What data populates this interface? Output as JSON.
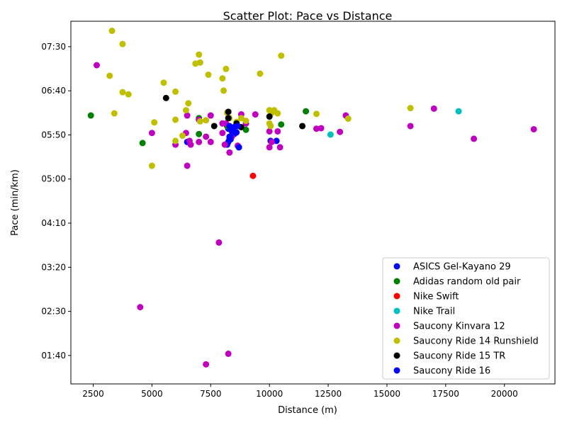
{
  "chart_data": {
    "type": "scatter",
    "title": "Scatter Plot: Pace vs Distance",
    "xlabel": "Distance (m)",
    "ylabel": "Pace (min/km)",
    "xlim": [
      1550,
      22150
    ],
    "ylim": [
      1.13,
      7.98
    ],
    "x_ticks": [
      2500,
      5000,
      7500,
      10000,
      12500,
      15000,
      17500,
      20000
    ],
    "x_tick_labels": [
      "2500",
      "5000",
      "7500",
      "10000",
      "12500",
      "15000",
      "17500",
      "20000"
    ],
    "y_ticks": [
      1.6667,
      2.5,
      3.3333,
      4.1667,
      5.0,
      5.8333,
      6.6667,
      7.5
    ],
    "y_tick_labels": [
      "01:40",
      "02:30",
      "03:20",
      "04:10",
      "05:00",
      "05:50",
      "06:40",
      "07:30"
    ],
    "grid": false,
    "legend_position": "lower right",
    "series": [
      {
        "name": "ASICS Gel-Kayano 29",
        "color": "#0000ff",
        "points": [
          [
            6500,
            5.7
          ],
          [
            8250,
            5.95
          ],
          [
            8300,
            5.8
          ],
          [
            8350,
            5.75
          ],
          [
            8400,
            5.9
          ],
          [
            8500,
            5.85
          ],
          [
            8250,
            5.7
          ],
          [
            10050,
            5.72
          ],
          [
            10300,
            5.72
          ],
          [
            8700,
            5.6
          ],
          [
            8200,
            5.65
          ],
          [
            8600,
            5.88
          ]
        ]
      },
      {
        "name": "Adidas random old pair",
        "color": "#008000",
        "points": [
          [
            2400,
            6.2
          ],
          [
            4600,
            5.68
          ],
          [
            7000,
            5.85
          ],
          [
            7000,
            6.15
          ],
          [
            9000,
            5.93
          ],
          [
            11550,
            6.28
          ],
          [
            10500,
            6.03
          ],
          [
            8200,
            6.0
          ]
        ]
      },
      {
        "name": "Nike Swift",
        "color": "#ff0000",
        "points": [
          [
            9300,
            5.06
          ]
        ]
      },
      {
        "name": "Nike Trail",
        "color": "#00bfbf",
        "points": [
          [
            12600,
            5.84
          ],
          [
            18050,
            6.28
          ]
        ]
      },
      {
        "name": "Saucony Kinvara 12",
        "color": "#bf00bf",
        "points": [
          [
            2650,
            7.15
          ],
          [
            4500,
            2.58
          ],
          [
            5000,
            5.87
          ],
          [
            6000,
            5.65
          ],
          [
            6450,
            5.87
          ],
          [
            6500,
            5.25
          ],
          [
            6500,
            6.2
          ],
          [
            6600,
            5.72
          ],
          [
            6650,
            5.65
          ],
          [
            7000,
            5.7
          ],
          [
            7000,
            6.12
          ],
          [
            7300,
            5.8
          ],
          [
            7500,
            5.7
          ],
          [
            7500,
            6.2
          ],
          [
            7850,
            3.8
          ],
          [
            7300,
            1.5
          ],
          [
            8000,
            6.05
          ],
          [
            8000,
            5.87
          ],
          [
            8100,
            5.65
          ],
          [
            8150,
            6.05
          ],
          [
            8250,
            1.7
          ],
          [
            8300,
            5.5
          ],
          [
            8400,
            5.8
          ],
          [
            8650,
            5.63
          ],
          [
            8800,
            6.22
          ],
          [
            9000,
            6.05
          ],
          [
            9400,
            6.22
          ],
          [
            10000,
            5.6
          ],
          [
            10000,
            5.9
          ],
          [
            10100,
            5.7
          ],
          [
            10350,
            5.9
          ],
          [
            10450,
            5.6
          ],
          [
            12000,
            5.95
          ],
          [
            12200,
            5.96
          ],
          [
            13000,
            5.89
          ],
          [
            13250,
            6.2
          ],
          [
            16000,
            6.0
          ],
          [
            17000,
            6.33
          ],
          [
            18700,
            5.76
          ],
          [
            21250,
            5.94
          ]
        ]
      },
      {
        "name": "Saucony Ride 14 Runshield",
        "color": "#bfbf00",
        "points": [
          [
            3300,
            7.8
          ],
          [
            3750,
            7.55
          ],
          [
            3200,
            6.95
          ],
          [
            3400,
            6.24
          ],
          [
            3750,
            6.64
          ],
          [
            4000,
            6.6
          ],
          [
            5000,
            5.25
          ],
          [
            5100,
            6.07
          ],
          [
            5500,
            6.82
          ],
          [
            6000,
            5.72
          ],
          [
            6000,
            6.12
          ],
          [
            6000,
            6.65
          ],
          [
            6300,
            5.82
          ],
          [
            6450,
            6.3
          ],
          [
            6550,
            6.43
          ],
          [
            6850,
            7.18
          ],
          [
            7000,
            7.35
          ],
          [
            7050,
            7.2
          ],
          [
            7050,
            6.09
          ],
          [
            7300,
            6.11
          ],
          [
            7400,
            6.97
          ],
          [
            8000,
            6.9
          ],
          [
            8050,
            6.67
          ],
          [
            8150,
            7.08
          ],
          [
            8200,
            6.25
          ],
          [
            8300,
            6.15
          ],
          [
            8600,
            6.08
          ],
          [
            8800,
            6.15
          ],
          [
            9000,
            6.1
          ],
          [
            9600,
            6.99
          ],
          [
            10000,
            6.3
          ],
          [
            10100,
            6.25
          ],
          [
            10200,
            6.3
          ],
          [
            10350,
            6.24
          ],
          [
            10000,
            6.05
          ],
          [
            10050,
            6.0
          ],
          [
            10500,
            7.33
          ],
          [
            12000,
            6.23
          ],
          [
            13350,
            6.14
          ],
          [
            16000,
            6.34
          ]
        ]
      },
      {
        "name": "Saucony Ride 15 TR",
        "color": "#000000",
        "points": [
          [
            5600,
            6.53
          ],
          [
            7650,
            6.0
          ],
          [
            8250,
            6.27
          ],
          [
            8250,
            6.15
          ],
          [
            8600,
            6.05
          ],
          [
            8800,
            5.98
          ],
          [
            10000,
            6.18
          ],
          [
            11400,
            6.0
          ]
        ]
      },
      {
        "name": "Saucony Ride 16",
        "color": "#0000ff",
        "points": [
          [
            8300,
            6.0
          ],
          [
            8350,
            5.8
          ],
          [
            8500,
            5.98
          ],
          [
            8650,
            6.0
          ],
          [
            8700,
            5.6
          ],
          [
            8300,
            5.75
          ],
          [
            8550,
            5.88
          ]
        ]
      }
    ]
  }
}
